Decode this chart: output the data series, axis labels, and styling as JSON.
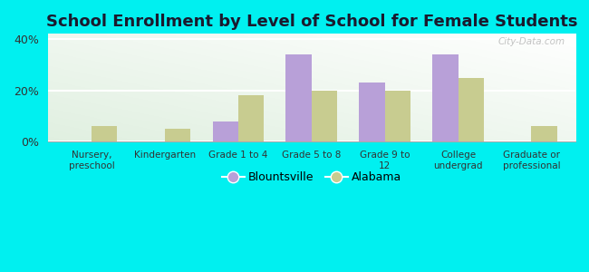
{
  "title": "School Enrollment by Level of School for Female Students",
  "categories": [
    "Nursery,\npreschool",
    "Kindergarten",
    "Grade 1 to 4",
    "Grade 5 to 8",
    "Grade 9 to\n12",
    "College\nundergrad",
    "Graduate or\nprofessional"
  ],
  "blountsville": [
    0,
    0,
    8,
    34,
    23,
    34,
    0
  ],
  "alabama": [
    6,
    5,
    18,
    20,
    20,
    25,
    6
  ],
  "blountsville_color": "#b8a0d8",
  "alabama_color": "#c8cc90",
  "background_color": "#00f0f0",
  "yticks": [
    0,
    20,
    40
  ],
  "ylim": [
    0,
    42
  ],
  "watermark": "City-Data.com",
  "legend_blountsville": "Blountsville",
  "legend_alabama": "Alabama",
  "title_fontsize": 13,
  "bar_width": 0.35
}
